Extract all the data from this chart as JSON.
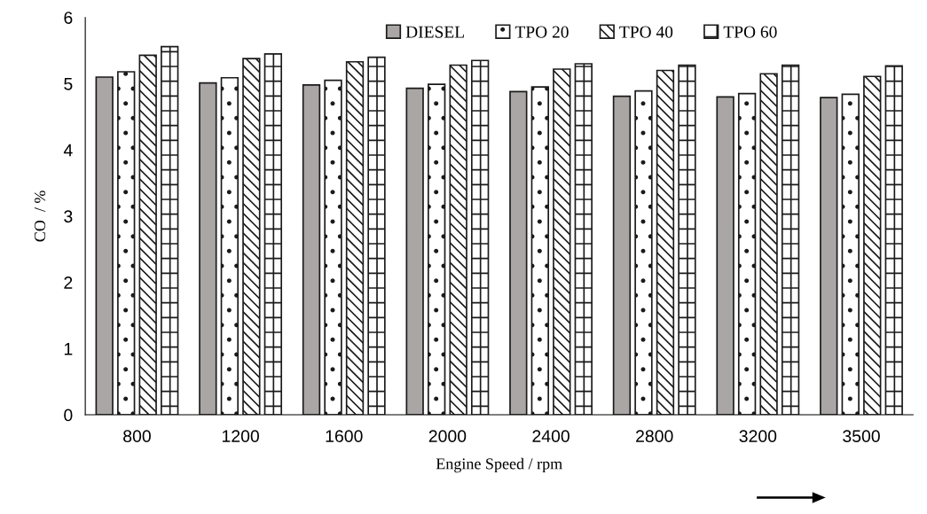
{
  "chart_data": {
    "type": "bar",
    "xlabel": "Engine Speed / rpm",
    "ylabel": "CO  / %",
    "categories": [
      "800",
      "1200",
      "1600",
      "2000",
      "2400",
      "2800",
      "3200",
      "3500"
    ],
    "series": [
      {
        "name": "DIESEL",
        "color": "#aaa6a6",
        "values": [
          5.1,
          5.01,
          4.98,
          4.93,
          4.88,
          4.81,
          4.8,
          4.79
        ]
      },
      {
        "name": "TPO 20",
        "color": "#ffffff",
        "values": [
          5.18,
          5.09,
          5.05,
          4.99,
          4.95,
          4.89,
          4.85,
          4.84
        ]
      },
      {
        "name": "TPO 40",
        "color": "#ffffff",
        "values": [
          5.43,
          5.38,
          5.33,
          5.28,
          5.22,
          5.2,
          5.15,
          5.11
        ]
      },
      {
        "name": "TPO 60",
        "color": "#ffffff",
        "values": [
          5.56,
          5.45,
          5.4,
          5.35,
          5.3,
          5.28,
          5.28,
          5.27
        ]
      }
    ],
    "ylim": [
      0,
      6
    ],
    "yticks": [
      0,
      1,
      2,
      3,
      4,
      5,
      6
    ],
    "grid": false,
    "legend": "top"
  }
}
